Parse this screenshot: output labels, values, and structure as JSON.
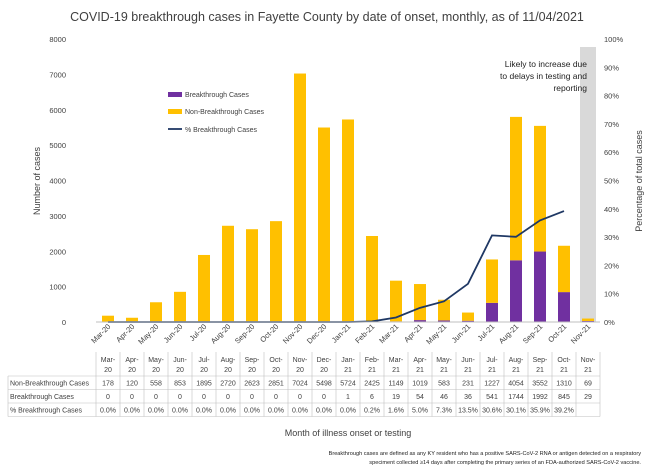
{
  "chart_data": {
    "type": "bar",
    "title": "COVID-19 breakthrough cases in Fayette County by date of onset, monthly, as of 11/04/2021",
    "xlabel": "Month of illness onset or testing",
    "ylabel": "Number of cases",
    "y2label": "Percentage of total cases",
    "ylim": [
      0,
      8000
    ],
    "y2lim": [
      0,
      100
    ],
    "y_ticks": [
      "0",
      "1000",
      "2000",
      "3000",
      "4000",
      "5000",
      "6000",
      "7000",
      "8000"
    ],
    "y2_ticks": [
      "0%",
      "10%",
      "20%",
      "30%",
      "40%",
      "50%",
      "60%",
      "70%",
      "80%",
      "90%",
      "100%"
    ],
    "categories": [
      "Mar-20",
      "Apr-20",
      "May-20",
      "Jun-20",
      "Jul-20",
      "Aug-20",
      "Sep-20",
      "Oct-20",
      "Nov-20",
      "Dec-20",
      "Jan-21",
      "Feb-21",
      "Mar-21",
      "Apr-21",
      "May-21",
      "Jun-21",
      "Jul-21",
      "Aug-21",
      "Sep-21",
      "Oct-21",
      "Nov-21"
    ],
    "table_categories": [
      [
        "Mar-",
        "20"
      ],
      [
        "Apr-",
        "20"
      ],
      [
        "May-",
        "20"
      ],
      [
        "Jun-",
        "20"
      ],
      [
        "Jul-",
        "20"
      ],
      [
        "Aug-",
        "20"
      ],
      [
        "Sep-",
        "20"
      ],
      [
        "Oct-",
        "20"
      ],
      [
        "Nov-",
        "20"
      ],
      [
        "Dec-",
        "20"
      ],
      [
        "Jan-",
        "21"
      ],
      [
        "Feb-",
        "21"
      ],
      [
        "Mar-",
        "21"
      ],
      [
        "Apr-",
        "21"
      ],
      [
        "May-",
        "21"
      ],
      [
        "Jun-",
        "21"
      ],
      [
        "Jul-",
        "21"
      ],
      [
        "Aug-",
        "21"
      ],
      [
        "Sep-",
        "21"
      ],
      [
        "Oct-",
        "21"
      ],
      [
        "Nov-",
        "21"
      ]
    ],
    "series": [
      {
        "name": "Breakthrough Cases",
        "table_name": "Breakthrough Cases",
        "kind": "bar",
        "color": "#7030a0",
        "values": [
          0,
          0,
          0,
          0,
          0,
          0,
          0,
          0,
          0,
          0,
          1,
          6,
          19,
          54,
          46,
          36,
          541,
          1744,
          1992,
          845,
          29
        ]
      },
      {
        "name": "Non-Breakthrough Cases",
        "table_name": "Non-Breakthrough Cases",
        "kind": "bar",
        "color": "#ffc000",
        "values": [
          178,
          120,
          558,
          853,
          1895,
          2720,
          2623,
          2851,
          7024,
          5498,
          5724,
          2425,
          1149,
          1019,
          583,
          231,
          1227,
          4054,
          3552,
          1310,
          69
        ]
      },
      {
        "name": "% Breakthrough Cases",
        "table_name": "% Breakthrough Cases",
        "kind": "line",
        "axis": "right",
        "color": "#1f3864",
        "values": [
          0.0,
          0.0,
          0.0,
          0.0,
          0.0,
          0.0,
          0.0,
          0.0,
          0.0,
          0.0,
          0.0,
          0.2,
          1.6,
          5.0,
          7.3,
          13.5,
          30.6,
          30.1,
          35.9,
          39.2,
          null
        ]
      }
    ],
    "pct_labels": [
      "0.0%",
      "0.0%",
      "0.0%",
      "0.0%",
      "0.0%",
      "0.0%",
      "0.0%",
      "0.0%",
      "0.0%",
      "0.0%",
      "0.0%",
      "0.2%",
      "1.6%",
      "5.0%",
      "7.3%",
      "13.5%",
      "30.6%",
      "30.1%",
      "35.9%",
      "39.2%",
      ""
    ],
    "shaded_category": "Nov-21",
    "shade_color": "#d9d9d9",
    "annotation": [
      "Likely to increase due",
      "to delays in testing and",
      "reporting"
    ],
    "footnote": [
      "Breakthrough cases are defined as any KY resident who has a positive SARS-CoV-2 RNA or antigen detected on a respiratory",
      "speciment collected ≥14 days after completing the primary series of an FDA-authorized SARS-CoV-2 vaccine."
    ],
    "legend": "left"
  }
}
